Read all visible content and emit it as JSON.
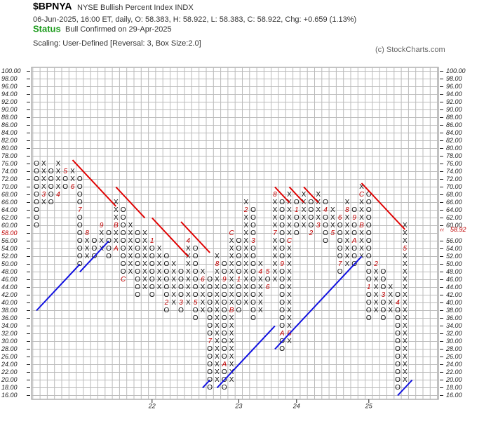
{
  "chart_data": {
    "type": "point-figure",
    "title": "$BPNYA",
    "subtitle": "NYSE Bullish Percent Index  INDX",
    "info": "06-Jun-2025, 16:00 ET, daily, O: 58.383, H: 58.922, L: 58.383, C: 58.922, Chg: +0.659 (1.13%)",
    "status_label": "Status",
    "status": "Bull Confirmed on 29-Apr-2025",
    "scaling": "Scaling: User-Defined [Reversal: 3, Box Size:2.0]",
    "credit": "(c) StockCharts.com",
    "ylim": [
      15,
      101
    ],
    "yticks": [
      {
        "value": 16,
        "label": "16.00"
      },
      {
        "value": 18,
        "label": "18.00"
      },
      {
        "value": 20,
        "label": "20.00"
      },
      {
        "value": 22,
        "label": "22.00"
      },
      {
        "value": 24,
        "label": "24.00"
      },
      {
        "value": 26,
        "label": "26.00"
      },
      {
        "value": 28,
        "label": "28.00"
      },
      {
        "value": 30,
        "label": "30.00"
      },
      {
        "value": 32,
        "label": "32.00"
      },
      {
        "value": 34,
        "label": "34.00"
      },
      {
        "value": 36,
        "label": "36.00"
      },
      {
        "value": 38,
        "label": "38.00"
      },
      {
        "value": 40,
        "label": "40.00"
      },
      {
        "value": 42,
        "label": "42.00"
      },
      {
        "value": 44,
        "label": "44.00"
      },
      {
        "value": 46,
        "label": "46.00"
      },
      {
        "value": 48,
        "label": "48.00"
      },
      {
        "value": 50,
        "label": "50.00"
      },
      {
        "value": 52,
        "label": "52.00"
      },
      {
        "value": 54,
        "label": "54.00"
      },
      {
        "value": 56,
        "label": "56.00"
      },
      {
        "value": 58,
        "label": "58.00"
      },
      {
        "value": 60,
        "label": "60.00"
      },
      {
        "value": 62,
        "label": "62.00"
      },
      {
        "value": 64,
        "label": "64.00"
      },
      {
        "value": 66,
        "label": "66.00"
      },
      {
        "value": 68,
        "label": "68.00"
      },
      {
        "value": 70,
        "label": "70.00"
      },
      {
        "value": 72,
        "label": "72.00"
      },
      {
        "value": 74,
        "label": "74.00"
      },
      {
        "value": 76,
        "label": "76.00"
      },
      {
        "value": 78,
        "label": "78.00"
      },
      {
        "value": 80,
        "label": "80.00"
      },
      {
        "value": 82,
        "label": "82.00"
      },
      {
        "value": 84,
        "label": "84.00"
      },
      {
        "value": 86,
        "label": "86.00"
      },
      {
        "value": 88,
        "label": "88.00"
      },
      {
        "value": 90,
        "label": "90.00"
      },
      {
        "value": 92,
        "label": "92.00"
      },
      {
        "value": 94,
        "label": "94.00"
      },
      {
        "value": 96,
        "label": "96.00"
      },
      {
        "value": 98,
        "label": "98.00"
      },
      {
        "value": 100,
        "label": "100.00"
      }
    ],
    "highlight_tick": 58,
    "highlight_color": "#c00000",
    "last_price": {
      "value": 58.922,
      "label": "58.92"
    },
    "grid": true,
    "columns": [
      {
        "kind": "O",
        "low": 60,
        "high": 76,
        "months": []
      },
      {
        "kind": "X",
        "low": 66,
        "high": 76,
        "months": [
          {
            "value": 68,
            "label": "3"
          }
        ]
      },
      {
        "kind": "O",
        "low": 66,
        "high": 74,
        "months": []
      },
      {
        "kind": "X",
        "low": 68,
        "high": 76,
        "months": [
          {
            "value": 68,
            "label": "4"
          }
        ]
      },
      {
        "kind": "O",
        "low": 70,
        "high": 74,
        "months": [
          {
            "value": 74,
            "label": "5"
          }
        ]
      },
      {
        "kind": "X",
        "low": 70,
        "high": 74,
        "months": [
          {
            "value": 70,
            "label": "6"
          }
        ]
      },
      {
        "kind": "O",
        "low": 50,
        "high": 72,
        "months": [
          {
            "value": 64,
            "label": "7"
          }
        ]
      },
      {
        "kind": "X",
        "low": 52,
        "high": 58,
        "months": [
          {
            "value": 58,
            "label": "8"
          }
        ]
      },
      {
        "kind": "O",
        "low": 52,
        "high": 56,
        "months": []
      },
      {
        "kind": "X",
        "low": 54,
        "high": 60,
        "months": [
          {
            "value": 60,
            "label": "9"
          }
        ]
      },
      {
        "kind": "O",
        "low": 52,
        "high": 58,
        "months": []
      },
      {
        "kind": "X",
        "low": 54,
        "high": 66,
        "months": [
          {
            "value": 54,
            "label": "A"
          },
          {
            "value": 60,
            "label": "B"
          }
        ]
      },
      {
        "kind": "O",
        "low": 46,
        "high": 64,
        "months": [
          {
            "value": 46,
            "label": "C"
          }
        ]
      },
      {
        "kind": "X",
        "low": 48,
        "high": 60,
        "months": []
      },
      {
        "kind": "O",
        "low": 42,
        "high": 58,
        "months": []
      },
      {
        "kind": "X",
        "low": 44,
        "high": 58,
        "months": []
      },
      {
        "kind": "O",
        "low": 42,
        "high": 56,
        "months": [
          {
            "value": 56,
            "label": "1"
          }
        ],
        "year": "22"
      },
      {
        "kind": "X",
        "low": 44,
        "high": 54,
        "months": []
      },
      {
        "kind": "O",
        "low": 38,
        "high": 52,
        "months": [
          {
            "value": 40,
            "label": "2"
          }
        ]
      },
      {
        "kind": "X",
        "low": 40,
        "high": 50,
        "months": []
      },
      {
        "kind": "O",
        "low": 38,
        "high": 48,
        "months": [
          {
            "value": 40,
            "label": "3"
          }
        ]
      },
      {
        "kind": "X",
        "low": 40,
        "high": 56,
        "months": [
          {
            "value": 56,
            "label": "4"
          }
        ]
      },
      {
        "kind": "O",
        "low": 36,
        "high": 54,
        "months": [
          {
            "value": 40,
            "label": "5"
          }
        ]
      },
      {
        "kind": "X",
        "low": 38,
        "high": 48,
        "months": [
          {
            "value": 46,
            "label": "6"
          }
        ]
      },
      {
        "kind": "O",
        "low": 18,
        "high": 46,
        "months": [
          {
            "value": 30,
            "label": "7"
          }
        ]
      },
      {
        "kind": "X",
        "low": 20,
        "high": 52,
        "months": [
          {
            "value": 50,
            "label": "8"
          }
        ]
      },
      {
        "kind": "O",
        "low": 18,
        "high": 50,
        "months": [
          {
            "value": 46,
            "label": "9"
          },
          {
            "value": 24,
            "label": "A"
          }
        ]
      },
      {
        "kind": "X",
        "low": 20,
        "high": 58,
        "months": [
          {
            "value": 38,
            "label": "B"
          },
          {
            "value": 58,
            "label": "C"
          }
        ]
      },
      {
        "kind": "O",
        "low": 38,
        "high": 56,
        "months": [
          {
            "value": 46,
            "label": "1"
          }
        ],
        "year": "23"
      },
      {
        "kind": "X",
        "low": 40,
        "high": 66,
        "months": [
          {
            "value": 64,
            "label": "2"
          }
        ]
      },
      {
        "kind": "O",
        "low": 36,
        "high": 64,
        "months": [
          {
            "value": 56,
            "label": "3"
          }
        ]
      },
      {
        "kind": "X",
        "low": 38,
        "high": 50,
        "months": [
          {
            "value": 48,
            "label": "4"
          }
        ]
      },
      {
        "kind": "O",
        "low": 44,
        "high": 48,
        "months": [
          {
            "value": 48,
            "label": "5"
          },
          {
            "value": 44,
            "label": "6"
          }
        ]
      },
      {
        "kind": "X",
        "low": 46,
        "high": 68,
        "months": [
          {
            "value": 58,
            "label": "7"
          },
          {
            "value": 68,
            "label": "8"
          }
        ]
      },
      {
        "kind": "O",
        "low": 28,
        "high": 66,
        "months": [
          {
            "value": 50,
            "label": "9"
          },
          {
            "value": 32,
            "label": "A"
          }
        ]
      },
      {
        "kind": "X",
        "low": 30,
        "high": 68,
        "months": [
          {
            "value": 32,
            "label": "B"
          },
          {
            "value": 56,
            "label": "C"
          }
        ]
      },
      {
        "kind": "O",
        "low": 58,
        "high": 66,
        "months": [
          {
            "value": 64,
            "label": "1"
          }
        ],
        "year": "24"
      },
      {
        "kind": "X",
        "low": 60,
        "high": 68,
        "months": []
      },
      {
        "kind": "O",
        "low": 58,
        "high": 66,
        "months": [
          {
            "value": 58,
            "label": "2"
          }
        ]
      },
      {
        "kind": "X",
        "low": 60,
        "high": 68,
        "months": [
          {
            "value": 60,
            "label": "3"
          }
        ]
      },
      {
        "kind": "O",
        "low": 56,
        "high": 66,
        "months": [
          {
            "value": 64,
            "label": "4"
          }
        ]
      },
      {
        "kind": "X",
        "low": 58,
        "high": 64,
        "months": [
          {
            "value": 58,
            "label": "5"
          }
        ]
      },
      {
        "kind": "O",
        "low": 48,
        "high": 62,
        "months": [
          {
            "value": 62,
            "label": "6"
          },
          {
            "value": 50,
            "label": "7"
          }
        ]
      },
      {
        "kind": "X",
        "low": 50,
        "high": 66,
        "months": [
          {
            "value": 64,
            "label": "8"
          }
        ]
      },
      {
        "kind": "O",
        "low": 50,
        "high": 64,
        "months": [
          {
            "value": 62,
            "label": "9"
          },
          {
            "value": 56,
            "label": "A"
          }
        ]
      },
      {
        "kind": "X",
        "low": 52,
        "high": 70,
        "months": [
          {
            "value": 60,
            "label": "B"
          },
          {
            "value": 68,
            "label": "C"
          }
        ]
      },
      {
        "kind": "O",
        "low": 36,
        "high": 68,
        "months": [
          {
            "value": 44,
            "label": "1"
          }
        ],
        "year": "25"
      },
      {
        "kind": "X",
        "low": 38,
        "high": 50,
        "months": [
          {
            "value": 50,
            "label": "2"
          }
        ]
      },
      {
        "kind": "O",
        "low": 36,
        "high": 48,
        "months": [
          {
            "value": 42,
            "label": "3"
          }
        ]
      },
      {
        "kind": "X",
        "low": 38,
        "high": 44,
        "months": []
      },
      {
        "kind": "O",
        "low": 18,
        "high": 42,
        "months": [
          {
            "value": 40,
            "label": "4"
          }
        ]
      },
      {
        "kind": "X",
        "low": 20,
        "high": 60,
        "months": [
          {
            "value": 54,
            "label": "5"
          }
        ]
      }
    ],
    "trendlines": [
      {
        "color": "#e00000",
        "from": [
          5,
          77
        ],
        "to": [
          11,
          65
        ]
      },
      {
        "color": "#e00000",
        "from": [
          11,
          70
        ],
        "to": [
          15,
          62
        ]
      },
      {
        "color": "#e00000",
        "from": [
          16,
          62
        ],
        "to": [
          21,
          52
        ]
      },
      {
        "color": "#e00000",
        "from": [
          20,
          61
        ],
        "to": [
          24,
          53
        ]
      },
      {
        "color": "#e00000",
        "from": [
          33,
          70
        ],
        "to": [
          35,
          66
        ]
      },
      {
        "color": "#e00000",
        "from": [
          35,
          70
        ],
        "to": [
          37,
          66
        ]
      },
      {
        "color": "#e00000",
        "from": [
          37,
          70
        ],
        "to": [
          39,
          66
        ]
      },
      {
        "color": "#e00000",
        "from": [
          45,
          71
        ],
        "to": [
          51,
          59
        ]
      },
      {
        "color": "#1010e0",
        "from": [
          0,
          38
        ],
        "to": [
          6,
          50
        ]
      },
      {
        "color": "#1010e0",
        "from": [
          6,
          48
        ],
        "to": [
          10,
          56
        ]
      },
      {
        "color": "#1010e0",
        "from": [
          23,
          18
        ],
        "to": [
          24,
          20
        ]
      },
      {
        "color": "#1010e0",
        "from": [
          25,
          18
        ],
        "to": [
          33,
          34
        ]
      },
      {
        "color": "#1010e0",
        "from": [
          33,
          28
        ],
        "to": [
          45,
          52
        ]
      },
      {
        "color": "#1010e0",
        "from": [
          50,
          16
        ],
        "to": [
          52,
          20
        ]
      }
    ]
  }
}
